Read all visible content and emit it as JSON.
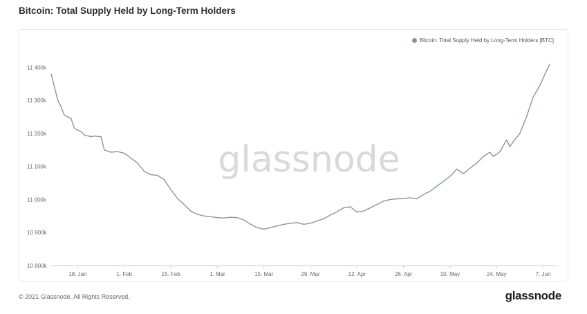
{
  "header": {
    "title": "Bitcoin: Total Supply Held by Long-Term Holders"
  },
  "footer": {
    "copyright": "© 2021 Glassnode. All Rights Reserved.",
    "logo_text": "glassnode"
  },
  "watermark": "glassnode",
  "colors": {
    "line": "#8b9594",
    "grid": "#eeeeee",
    "axis": "#cccccc"
  },
  "chart_data": {
    "type": "line",
    "title": "Bitcoin: Total Supply Held by Long-Term Holders",
    "xlabel": "",
    "ylabel": "",
    "legend": {
      "position": "top-right",
      "entries": [
        "Bitcoin: Total Supply Held by Long-Term Holders [BTC]"
      ]
    },
    "grid": false,
    "ylim": [
      10800,
      11430
    ],
    "xlim": [
      "2021-01-10",
      "2021-06-10"
    ],
    "x_ticks": [
      {
        "date": "2021-01-18",
        "label": "18. Jan"
      },
      {
        "date": "2021-02-01",
        "label": "1. Feb"
      },
      {
        "date": "2021-02-15",
        "label": "15. Feb"
      },
      {
        "date": "2021-03-01",
        "label": "1. Mar"
      },
      {
        "date": "2021-03-15",
        "label": "15. Mar"
      },
      {
        "date": "2021-03-29",
        "label": "29. Mar"
      },
      {
        "date": "2021-04-12",
        "label": "12. Apr"
      },
      {
        "date": "2021-04-26",
        "label": "26. Apr"
      },
      {
        "date": "2021-05-10",
        "label": "10. May"
      },
      {
        "date": "2021-05-24",
        "label": "24. May"
      },
      {
        "date": "2021-06-07",
        "label": "7. Jun"
      }
    ],
    "y_ticks": [
      {
        "value": 10800,
        "label": "10 800k"
      },
      {
        "value": 10900,
        "label": "10 900k"
      },
      {
        "value": 11000,
        "label": "11 000k"
      },
      {
        "value": 11100,
        "label": "11 100k"
      },
      {
        "value": 11200,
        "label": "11 200k"
      },
      {
        "value": 11300,
        "label": "11 300k"
      },
      {
        "value": 11400,
        "label": "11 400k"
      }
    ],
    "series": [
      {
        "name": "Bitcoin: Total Supply Held by Long-Term Holders [BTC]",
        "points": [
          [
            "2021-01-10",
            11380
          ],
          [
            "2021-01-11",
            11340
          ],
          [
            "2021-01-12",
            11300
          ],
          [
            "2021-01-13",
            11280
          ],
          [
            "2021-01-14",
            11255
          ],
          [
            "2021-01-16",
            11245
          ],
          [
            "2021-01-17",
            11215
          ],
          [
            "2021-01-19",
            11205
          ],
          [
            "2021-01-20",
            11195
          ],
          [
            "2021-01-22",
            11190
          ],
          [
            "2021-01-23",
            11192
          ],
          [
            "2021-01-25",
            11190
          ],
          [
            "2021-01-26",
            11150
          ],
          [
            "2021-01-28",
            11143
          ],
          [
            "2021-01-30",
            11145
          ],
          [
            "2021-02-01",
            11140
          ],
          [
            "2021-02-03",
            11125
          ],
          [
            "2021-02-05",
            11110
          ],
          [
            "2021-02-07",
            11085
          ],
          [
            "2021-02-09",
            11075
          ],
          [
            "2021-02-11",
            11073
          ],
          [
            "2021-02-13",
            11060
          ],
          [
            "2021-02-15",
            11030
          ],
          [
            "2021-02-17",
            11003
          ],
          [
            "2021-02-19",
            10985
          ],
          [
            "2021-02-21",
            10965
          ],
          [
            "2021-02-23",
            10955
          ],
          [
            "2021-02-25",
            10950
          ],
          [
            "2021-02-27",
            10948
          ],
          [
            "2021-03-01",
            10945
          ],
          [
            "2021-03-03",
            10944
          ],
          [
            "2021-03-05",
            10946
          ],
          [
            "2021-03-07",
            10945
          ],
          [
            "2021-03-09",
            10938
          ],
          [
            "2021-03-11",
            10925
          ],
          [
            "2021-03-13",
            10915
          ],
          [
            "2021-03-15",
            10910
          ],
          [
            "2021-03-17",
            10915
          ],
          [
            "2021-03-19",
            10920
          ],
          [
            "2021-03-21",
            10925
          ],
          [
            "2021-03-23",
            10928
          ],
          [
            "2021-03-25",
            10930
          ],
          [
            "2021-03-27",
            10925
          ],
          [
            "2021-03-29",
            10928
          ],
          [
            "2021-03-31",
            10935
          ],
          [
            "2021-04-02",
            10942
          ],
          [
            "2021-04-04",
            10953
          ],
          [
            "2021-04-06",
            10963
          ],
          [
            "2021-04-08",
            10975
          ],
          [
            "2021-04-10",
            10978
          ],
          [
            "2021-04-12",
            10962
          ],
          [
            "2021-04-14",
            10965
          ],
          [
            "2021-04-16",
            10975
          ],
          [
            "2021-04-18",
            10985
          ],
          [
            "2021-04-20",
            10995
          ],
          [
            "2021-04-22",
            11000
          ],
          [
            "2021-04-24",
            11002
          ],
          [
            "2021-04-26",
            11003
          ],
          [
            "2021-04-28",
            11005
          ],
          [
            "2021-04-30",
            11002
          ],
          [
            "2021-05-02",
            11015
          ],
          [
            "2021-05-04",
            11025
          ],
          [
            "2021-05-06",
            11040
          ],
          [
            "2021-05-08",
            11055
          ],
          [
            "2021-05-10",
            11070
          ],
          [
            "2021-05-12",
            11092
          ],
          [
            "2021-05-14",
            11078
          ],
          [
            "2021-05-16",
            11095
          ],
          [
            "2021-05-18",
            11110
          ],
          [
            "2021-05-20",
            11130
          ],
          [
            "2021-05-22",
            11143
          ],
          [
            "2021-05-23",
            11130
          ],
          [
            "2021-05-25",
            11145
          ],
          [
            "2021-05-27",
            11180
          ],
          [
            "2021-05-28",
            11160
          ],
          [
            "2021-05-29",
            11175
          ],
          [
            "2021-05-31",
            11200
          ],
          [
            "2021-06-02",
            11250
          ],
          [
            "2021-06-04",
            11310
          ],
          [
            "2021-06-06",
            11345
          ],
          [
            "2021-06-08",
            11390
          ],
          [
            "2021-06-09",
            11410
          ]
        ]
      }
    ]
  }
}
